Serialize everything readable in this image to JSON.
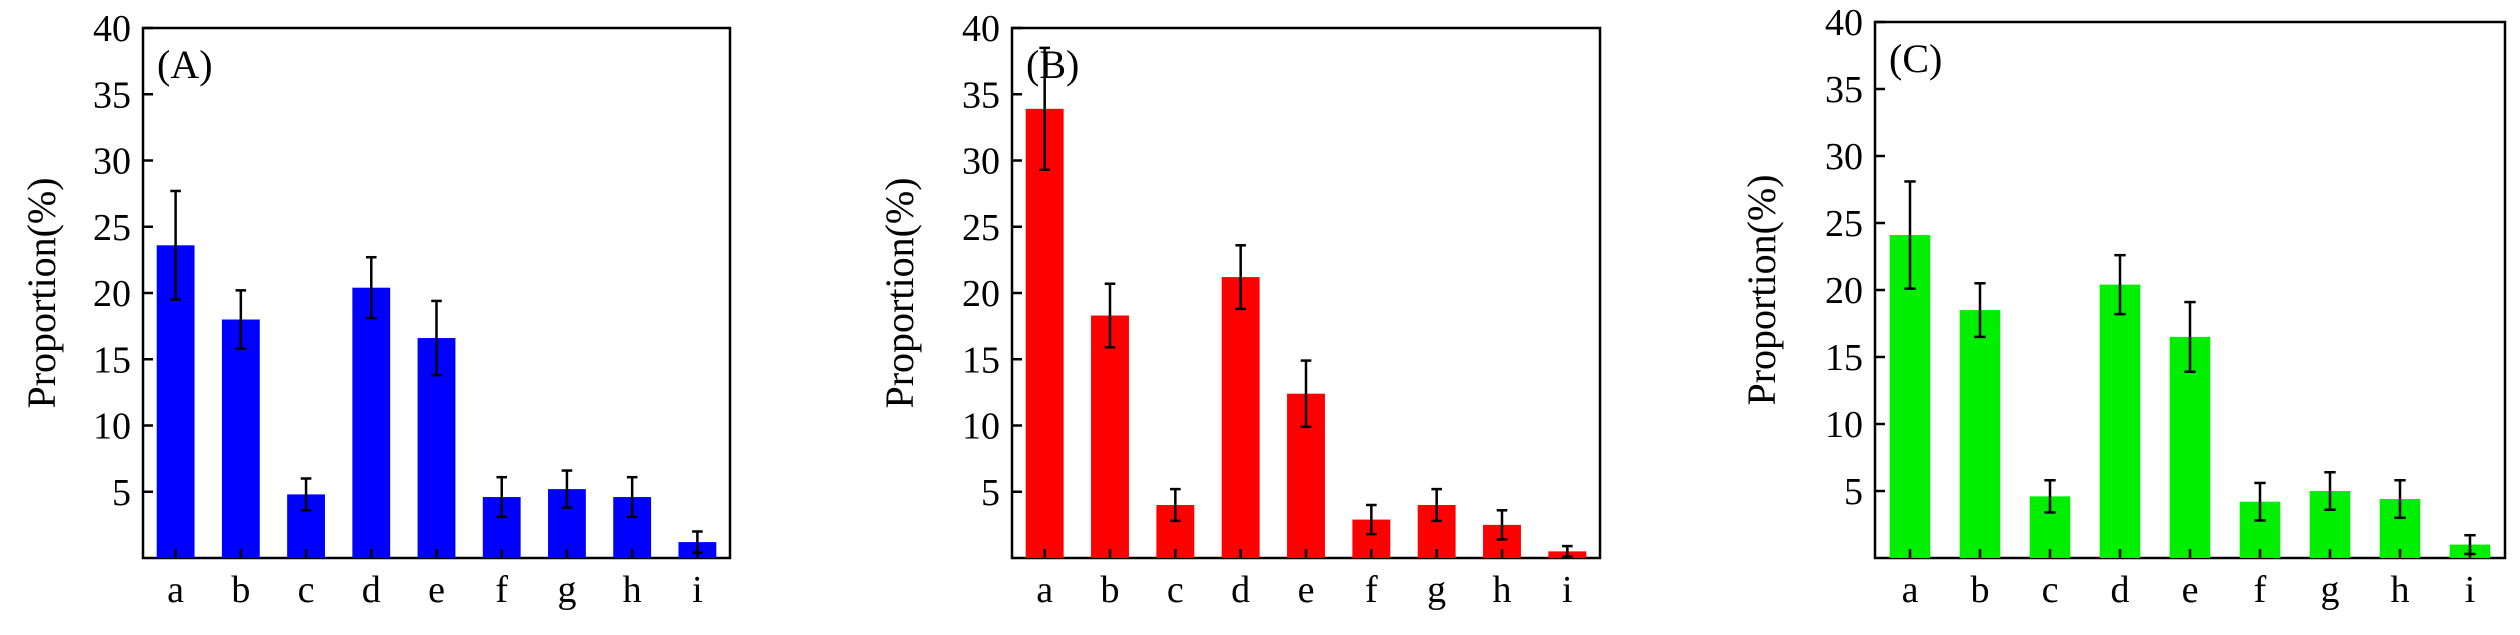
{
  "chart_data": [
    {
      "type": "bar",
      "panel_label": "(A)",
      "ylabel": "Proportion(%)",
      "categories": [
        "a",
        "b",
        "c",
        "d",
        "e",
        "f",
        "g",
        "h",
        "i"
      ],
      "values": [
        23.6,
        18.0,
        4.8,
        20.4,
        16.6,
        4.6,
        5.2,
        4.6,
        1.2
      ],
      "errors": [
        4.1,
        2.2,
        1.2,
        2.3,
        2.8,
        1.5,
        1.4,
        1.5,
        0.8
      ],
      "ylim": [
        0,
        40
      ],
      "yticks": [
        "5",
        "10",
        "15",
        "20",
        "25",
        "30",
        "35",
        "40"
      ],
      "color": "#0000ff",
      "grid": false
    },
    {
      "type": "bar",
      "panel_label": "(B)",
      "ylabel": "Proportion(%)",
      "categories": [
        "a",
        "b",
        "c",
        "d",
        "e",
        "f",
        "g",
        "h",
        "i"
      ],
      "values": [
        33.9,
        18.3,
        4.0,
        21.2,
        12.4,
        2.9,
        4.0,
        2.5,
        0.5
      ],
      "errors": [
        4.6,
        2.4,
        1.2,
        2.4,
        2.5,
        1.1,
        1.2,
        1.1,
        0.4
      ],
      "ylim": [
        0,
        40
      ],
      "yticks": [
        "5",
        "10",
        "15",
        "20",
        "25",
        "30",
        "35",
        "40"
      ],
      "color": "#ff0000",
      "grid": false
    },
    {
      "type": "bar",
      "panel_label": "(C)",
      "ylabel": "Proportion(%)",
      "categories": [
        "a",
        "b",
        "c",
        "d",
        "e",
        "f",
        "g",
        "h",
        "i"
      ],
      "values": [
        24.1,
        18.5,
        4.6,
        20.4,
        16.5,
        4.2,
        5.0,
        4.4,
        1.0
      ],
      "errors": [
        4.0,
        2.0,
        1.2,
        2.2,
        2.6,
        1.4,
        1.4,
        1.4,
        0.7
      ],
      "ylim": [
        0,
        40
      ],
      "yticks": [
        "5",
        "10",
        "15",
        "20",
        "25",
        "30",
        "35",
        "40"
      ],
      "color": "#00ee00",
      "grid": false
    }
  ]
}
